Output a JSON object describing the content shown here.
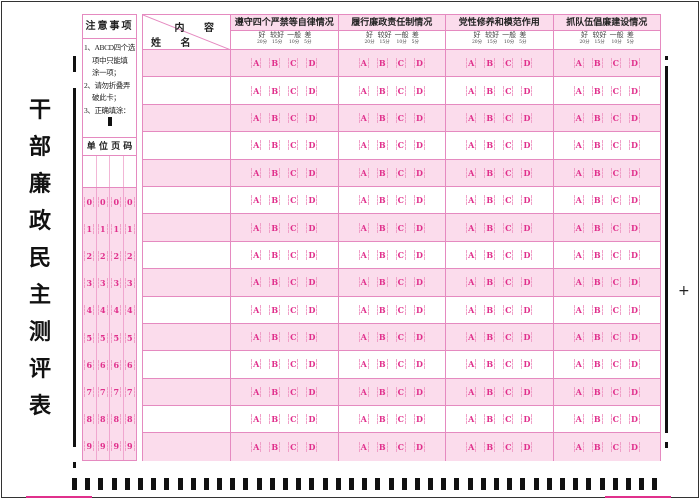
{
  "title_chars": [
    "干",
    "部",
    "廉",
    "政",
    "民",
    "主",
    "测",
    "评",
    "表"
  ],
  "notes": {
    "heading": "注意事项",
    "items": [
      "1、ABCD四个选",
      "项中只能填",
      "涂一项；",
      "2、请勿折叠弄",
      "破此卡；",
      "3、正确填涂："
    ],
    "code_heading": "单 位 页 码",
    "digits": [
      "0",
      "1",
      "2",
      "3",
      "4",
      "5",
      "6",
      "7",
      "8",
      "9"
    ]
  },
  "table": {
    "header_content": "内 容",
    "header_name": "姓 名",
    "columns": [
      "遵守四个严禁等自律情况",
      "履行廉政责任制情况",
      "党性修养和模范作用",
      "抓队伍倡廉建设情况"
    ],
    "levels": [
      {
        "label": "好",
        "score": "20分"
      },
      {
        "label": "较好",
        "score": "15分"
      },
      {
        "label": "一般",
        "score": "10分"
      },
      {
        "label": "差",
        "score": "5分"
      }
    ],
    "options": [
      "A",
      "B",
      "C",
      "D"
    ],
    "row_count": 15
  },
  "colors": {
    "accent": "#e0308c",
    "border": "#e58ac0",
    "row_fill": "#fbdcec"
  }
}
